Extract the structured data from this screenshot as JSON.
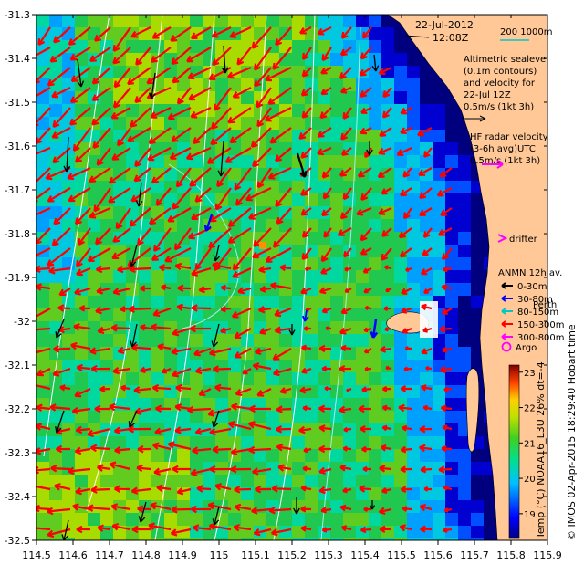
{
  "map": {
    "date": "22-Jul-2012",
    "time": "12:08Z",
    "scale_label": "200  1000m",
    "lon_ticks": [
      "114.5",
      "114.6",
      "114.7",
      "114.8",
      "114.9",
      "115",
      "115.1",
      "115.2",
      "115.3",
      "115.4",
      "115.5",
      "115.6",
      "115.7",
      "115.8",
      "115.9"
    ],
    "lat_ticks": [
      "-31.3",
      "-31.4",
      "-31.5",
      "-31.6",
      "-31.7",
      "-31.8",
      "-31.9",
      "-32",
      "-32.1",
      "-32.2",
      "-32.3",
      "-32.4",
      "-32.5"
    ]
  },
  "altimetry_legend": {
    "lines": [
      "Altimetric sealevel",
      "(0.1m contours)",
      "and velocity for",
      "22-Jul 12Z",
      "0.5m/s (1kt 3h)"
    ]
  },
  "hf_legend": {
    "lines": [
      "HF radar velocity",
      "(3-6h avg)UTC",
      "0.5m/s (1kt 3h)"
    ]
  },
  "drifter_label": "drifter",
  "anmn": {
    "title": "ANMN 12h av.",
    "items": [
      {
        "label": "0-30m",
        "color": "#000000"
      },
      {
        "label": "30-80m",
        "color": "#0000ff"
      },
      {
        "label": "80-150m",
        "color": "#00c8c8"
      },
      {
        "label": "150-300m",
        "color": "#ff0000"
      },
      {
        "label": "300-800m",
        "color": "#ff00ff"
      }
    ]
  },
  "perth_label": "Perth",
  "argo_label": "Argo",
  "colorbar": {
    "ticks": [
      "23",
      "22",
      "21",
      "20",
      "19"
    ],
    "min": 18.3,
    "max": 23.2,
    "label": "Temp (°C) NOAA16_L3U 26% dt=-4"
  },
  "credit": "© IMOS 02-Apr-2015 18:29:40 Hobart time",
  "colors": {
    "land": "#ffc896",
    "radar_arrow": "#ff0000",
    "altimetry_arrow": "#000000",
    "contour": "#ffffff",
    "cold": "#0000a0",
    "warm": "#ffff00"
  }
}
